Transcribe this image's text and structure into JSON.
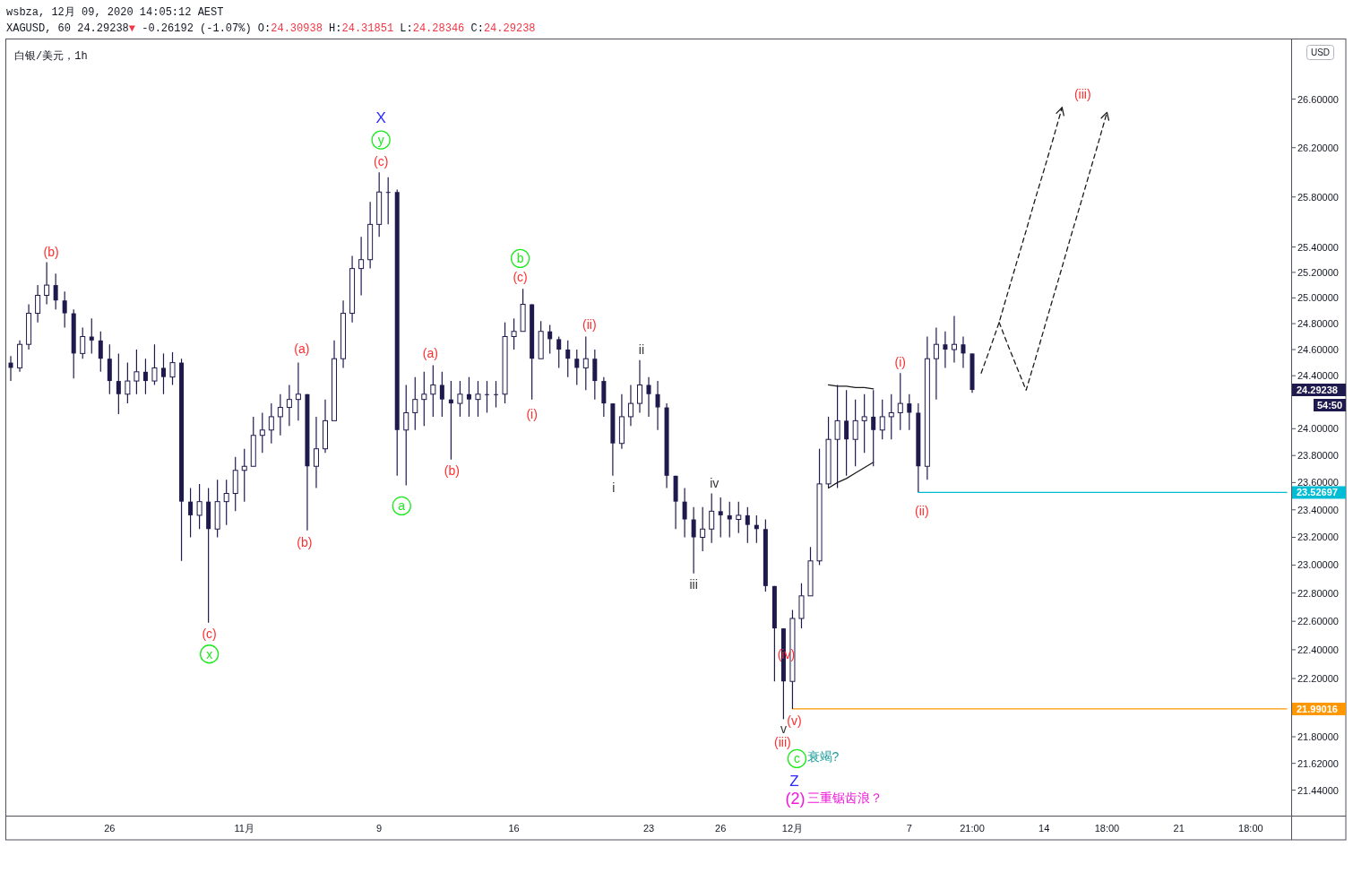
{
  "chart_data": {
    "type": "candlestick",
    "title": "白银/美元，1h",
    "log": true,
    "color": "#1f1a4d",
    "ylim": [
      21.27,
      27.1
    ],
    "yticks": [
      {
        "value": 26.6,
        "label": "26.60000"
      },
      {
        "value": 26.2,
        "label": "26.20000"
      },
      {
        "value": 25.8,
        "label": "25.80000"
      },
      {
        "value": 25.4,
        "label": "25.40000"
      },
      {
        "value": 25.2,
        "label": "25.20000"
      },
      {
        "value": 25.0,
        "label": "25.00000"
      },
      {
        "value": 24.8,
        "label": "24.80000"
      },
      {
        "value": 24.6,
        "label": "24.60000"
      },
      {
        "value": 24.4,
        "label": "24.40000"
      },
      {
        "value": 24.0,
        "label": "24.00000"
      },
      {
        "value": 23.8,
        "label": "23.80000"
      },
      {
        "value": 23.6,
        "label": "23.60000"
      },
      {
        "value": 23.4,
        "label": "23.40000"
      },
      {
        "value": 23.2,
        "label": "23.20000"
      },
      {
        "value": 23.0,
        "label": "23.00000"
      },
      {
        "value": 22.8,
        "label": "22.80000"
      },
      {
        "value": 22.6,
        "label": "22.60000"
      },
      {
        "value": 22.4,
        "label": "22.40000"
      },
      {
        "value": 22.2,
        "label": "22.20000"
      },
      {
        "value": 21.8,
        "label": "21.80000"
      },
      {
        "value": 21.62,
        "label": "21.62000"
      },
      {
        "value": 21.44,
        "label": "21.44000"
      }
    ],
    "categories": [
      null,
      null,
      null,
      null,
      null,
      null,
      null,
      null,
      null,
      null,
      null,
      "26",
      null,
      null,
      null,
      null,
      null,
      null,
      null,
      null,
      null,
      null,
      null,
      null,
      null,
      null,
      "11月",
      null,
      null,
      null,
      null,
      null,
      null,
      null,
      null,
      null,
      null,
      null,
      null,
      null,
      null,
      "9",
      null,
      null,
      null,
      null,
      null,
      null,
      null,
      null,
      null,
      null,
      null,
      null,
      null,
      null,
      "16",
      null,
      null,
      null,
      null,
      null,
      null,
      null,
      null,
      null,
      null,
      null,
      null,
      null,
      null,
      "23",
      null,
      null,
      null,
      null,
      null,
      null,
      null,
      "26",
      null,
      null,
      null,
      null,
      null,
      null,
      null,
      "12月",
      null,
      null,
      null,
      null,
      null,
      null,
      null,
      null,
      null,
      null,
      null,
      null,
      "7",
      null,
      null,
      null,
      null,
      null,
      null,
      "21:00",
      null,
      null,
      null,
      null,
      null,
      null,
      null,
      "14",
      null,
      null,
      null,
      null,
      null,
      null,
      "18:00",
      null,
      null,
      null,
      null,
      null,
      null,
      null,
      "21",
      null,
      null,
      null,
      null,
      null,
      null,
      null,
      "18:00",
      null,
      null,
      null,
      null
    ],
    "ohlc": [
      [
        24.5,
        24.55,
        24.36,
        24.46
      ],
      [
        24.46,
        24.67,
        24.43,
        24.64
      ],
      [
        24.64,
        24.95,
        24.6,
        24.88
      ],
      [
        24.88,
        25.1,
        24.81,
        25.02
      ],
      [
        25.02,
        25.28,
        24.95,
        25.1
      ],
      [
        25.1,
        25.19,
        24.91,
        24.98
      ],
      [
        24.98,
        25.05,
        24.77,
        24.88
      ],
      [
        24.88,
        24.91,
        24.38,
        24.57
      ],
      [
        24.57,
        24.77,
        24.53,
        24.7
      ],
      [
        24.7,
        24.84,
        24.57,
        24.67
      ],
      [
        24.67,
        24.74,
        24.43,
        24.53
      ],
      [
        24.53,
        24.64,
        24.26,
        24.36
      ],
      [
        24.36,
        24.57,
        24.11,
        24.26
      ],
      [
        24.26,
        24.5,
        24.19,
        24.36
      ],
      [
        24.36,
        24.6,
        24.26,
        24.43
      ],
      [
        24.43,
        24.53,
        24.26,
        24.36
      ],
      [
        24.36,
        24.64,
        24.33,
        24.46
      ],
      [
        24.46,
        24.57,
        24.26,
        24.39
      ],
      [
        24.39,
        24.58,
        24.33,
        24.5
      ],
      [
        24.5,
        24.53,
        23.03,
        23.46
      ],
      [
        23.46,
        23.56,
        23.2,
        23.36
      ],
      [
        23.36,
        23.59,
        23.26,
        23.46
      ],
      [
        23.46,
        23.56,
        22.59,
        23.26
      ],
      [
        23.26,
        23.62,
        23.2,
        23.46
      ],
      [
        23.46,
        23.62,
        23.29,
        23.52
      ],
      [
        23.52,
        23.79,
        23.39,
        23.69
      ],
      [
        23.69,
        23.85,
        23.46,
        23.72
      ],
      [
        23.72,
        24.09,
        23.72,
        23.95
      ],
      [
        23.95,
        24.12,
        23.82,
        23.99
      ],
      [
        23.99,
        24.19,
        23.89,
        24.09
      ],
      [
        24.09,
        24.26,
        23.95,
        24.16
      ],
      [
        24.16,
        24.33,
        24.02,
        24.22
      ],
      [
        24.22,
        24.5,
        24.06,
        24.26
      ],
      [
        24.26,
        24.26,
        23.25,
        23.72
      ],
      [
        23.72,
        24.09,
        23.56,
        23.85
      ],
      [
        23.85,
        24.22,
        23.82,
        24.06
      ],
      [
        24.06,
        24.67,
        24.06,
        24.53
      ],
      [
        24.53,
        24.98,
        24.46,
        24.88
      ],
      [
        24.88,
        25.33,
        24.81,
        25.23
      ],
      [
        25.23,
        25.48,
        25.02,
        25.3
      ],
      [
        25.3,
        25.76,
        25.23,
        25.58
      ],
      [
        25.58,
        26.0,
        25.48,
        25.84
      ],
      [
        25.84,
        25.96,
        25.58,
        25.84
      ],
      [
        25.84,
        25.86,
        23.65,
        23.99
      ],
      [
        23.99,
        24.33,
        23.58,
        24.12
      ],
      [
        24.12,
        24.39,
        23.99,
        24.22
      ],
      [
        24.22,
        24.43,
        24.02,
        24.26
      ],
      [
        24.26,
        24.48,
        24.09,
        24.33
      ],
      [
        24.33,
        24.43,
        24.09,
        24.22
      ],
      [
        24.22,
        24.36,
        23.77,
        24.19
      ],
      [
        24.19,
        24.36,
        24.09,
        24.26
      ],
      [
        24.26,
        24.39,
        24.09,
        24.22
      ],
      [
        24.22,
        24.36,
        24.09,
        24.26
      ],
      [
        24.26,
        24.36,
        24.12,
        24.26
      ],
      [
        24.26,
        24.36,
        24.16,
        24.26
      ],
      [
        24.26,
        24.81,
        24.19,
        24.7
      ],
      [
        24.7,
        24.84,
        24.6,
        24.74
      ],
      [
        24.74,
        25.07,
        24.74,
        24.95
      ],
      [
        24.95,
        24.95,
        24.22,
        24.53
      ],
      [
        24.53,
        24.82,
        24.53,
        24.74
      ],
      [
        24.74,
        24.79,
        24.57,
        24.68
      ],
      [
        24.68,
        24.7,
        24.46,
        24.6
      ],
      [
        24.6,
        24.67,
        24.39,
        24.53
      ],
      [
        24.53,
        24.6,
        24.33,
        24.46
      ],
      [
        24.46,
        24.7,
        24.29,
        24.53
      ],
      [
        24.53,
        24.6,
        24.22,
        24.36
      ],
      [
        24.36,
        24.39,
        24.09,
        24.19
      ],
      [
        24.19,
        24.19,
        23.65,
        23.89
      ],
      [
        23.89,
        24.26,
        23.85,
        24.09
      ],
      [
        24.09,
        24.33,
        24.02,
        24.19
      ],
      [
        24.19,
        24.52,
        24.12,
        24.33
      ],
      [
        24.33,
        24.39,
        24.09,
        24.26
      ],
      [
        24.26,
        24.36,
        23.99,
        24.16
      ],
      [
        24.16,
        24.19,
        23.56,
        23.65
      ],
      [
        23.65,
        23.65,
        23.26,
        23.46
      ],
      [
        23.46,
        23.56,
        23.2,
        23.33
      ],
      [
        23.33,
        23.42,
        22.94,
        23.2
      ],
      [
        23.2,
        23.42,
        23.1,
        23.26
      ],
      [
        23.26,
        23.52,
        23.16,
        23.39
      ],
      [
        23.39,
        23.49,
        23.2,
        23.36
      ],
      [
        23.36,
        23.46,
        23.2,
        23.33
      ],
      [
        23.33,
        23.46,
        23.23,
        23.36
      ],
      [
        23.36,
        23.42,
        23.16,
        23.29
      ],
      [
        23.29,
        23.36,
        23.16,
        23.26
      ],
      [
        23.26,
        23.33,
        22.81,
        22.85
      ],
      [
        22.85,
        22.85,
        22.18,
        22.55
      ],
      [
        22.55,
        22.55,
        21.92,
        22.18
      ],
      [
        22.18,
        22.68,
        21.99,
        22.62
      ],
      [
        22.62,
        22.87,
        22.55,
        22.78
      ],
      [
        22.78,
        23.13,
        22.78,
        23.03
      ],
      [
        23.03,
        23.85,
        23.0,
        23.59
      ],
      [
        23.59,
        24.09,
        23.56,
        23.92
      ],
      [
        23.92,
        24.33,
        23.56,
        24.06
      ],
      [
        24.06,
        24.29,
        23.65,
        23.92
      ],
      [
        23.92,
        24.22,
        23.72,
        24.06
      ],
      [
        24.06,
        24.26,
        23.82,
        24.09
      ],
      [
        24.09,
        24.29,
        23.72,
        23.99
      ],
      [
        23.99,
        24.22,
        23.92,
        24.09
      ],
      [
        24.09,
        24.26,
        23.92,
        24.12
      ],
      [
        24.12,
        24.42,
        23.99,
        24.19
      ],
      [
        24.19,
        24.26,
        23.99,
        24.12
      ],
      [
        24.12,
        24.19,
        23.53,
        23.72
      ],
      [
        23.72,
        24.7,
        23.62,
        24.53
      ],
      [
        24.53,
        24.77,
        24.22,
        24.64
      ],
      [
        24.64,
        24.74,
        24.46,
        24.6
      ],
      [
        24.6,
        24.86,
        24.5,
        24.64
      ],
      [
        24.64,
        24.7,
        24.46,
        24.57
      ],
      [
        24.57,
        24.57,
        24.27,
        24.29238
      ],
      null,
      null,
      null,
      null,
      null,
      null,
      null,
      null,
      null,
      null,
      null,
      null,
      null,
      null,
      null,
      null,
      null,
      null,
      null,
      null,
      null,
      null,
      null,
      null,
      null,
      null,
      null,
      null,
      null,
      null,
      null,
      null,
      null,
      null,
      null
    ],
    "value_labels": [
      null,
      null,
      null,
      null,
      null,
      null,
      null,
      null,
      null,
      null,
      null,
      null,
      null,
      null,
      null,
      null,
      null,
      null,
      null,
      null,
      null,
      null,
      null,
      null,
      null,
      null,
      null,
      null,
      null,
      null,
      null,
      null,
      null,
      null,
      null,
      null,
      null,
      null,
      null,
      null,
      null,
      null,
      null,
      null,
      null,
      null,
      null,
      null,
      null,
      null,
      null,
      null,
      null,
      null,
      null,
      null,
      null,
      null,
      null,
      null,
      null,
      null,
      null,
      null,
      null,
      null,
      null,
      null,
      null,
      null,
      null,
      null,
      null,
      null,
      null,
      null,
      null,
      null,
      null,
      null,
      null,
      null,
      null,
      null,
      null,
      null,
      null,
      null,
      null,
      null,
      null,
      null,
      null,
      null,
      null,
      null,
      null,
      null,
      null,
      null,
      null,
      null,
      null,
      null,
      null,
      null,
      null,
      "24.29238",
      null,
      null,
      null,
      null,
      null,
      null,
      null,
      null,
      null,
      null,
      null,
      null,
      null,
      null,
      null,
      null,
      null,
      null,
      null,
      null,
      null,
      null,
      null,
      null,
      null,
      null,
      null,
      null,
      null,
      null,
      null,
      null,
      null,
      null,
      null
    ],
    "series": [
      {
        "type": "line",
        "color": "#1b1b1b",
        "values": [
          null,
          null,
          null,
          null,
          null,
          null,
          null,
          null,
          null,
          null,
          null,
          null,
          null,
          null,
          null,
          null,
          null,
          null,
          null,
          null,
          null,
          null,
          null,
          null,
          null,
          null,
          null,
          null,
          null,
          null,
          null,
          null,
          null,
          null,
          null,
          null,
          null,
          null,
          null,
          null,
          null,
          null,
          null,
          null,
          null,
          null,
          null,
          null,
          null,
          null,
          null,
          null,
          null,
          null,
          null,
          null,
          null,
          null,
          null,
          null,
          null,
          null,
          null,
          null,
          null,
          null,
          null,
          null,
          null,
          null,
          null,
          null,
          null,
          null,
          null,
          null,
          null,
          null,
          null,
          null,
          null,
          null,
          null,
          null,
          null,
          null,
          null,
          null,
          null,
          null,
          null,
          24.33,
          24.32,
          24.32,
          24.31,
          24.31,
          24.3,
          null,
          null,
          null,
          null,
          null,
          null,
          null,
          null,
          null,
          null,
          null,
          null,
          null,
          null,
          null,
          null,
          null,
          null,
          null,
          null,
          null,
          null,
          null,
          null,
          null,
          null,
          null,
          null,
          null,
          null,
          null,
          null,
          null,
          null,
          null,
          null,
          null,
          null,
          null,
          null,
          null,
          null,
          null,
          null,
          null,
          null
        ]
      },
      {
        "type": "line",
        "color": "#1b1b1b",
        "values": [
          null,
          null,
          null,
          null,
          null,
          null,
          null,
          null,
          null,
          null,
          null,
          null,
          null,
          null,
          null,
          null,
          null,
          null,
          null,
          null,
          null,
          null,
          null,
          null,
          null,
          null,
          null,
          null,
          null,
          null,
          null,
          null,
          null,
          null,
          null,
          null,
          null,
          null,
          null,
          null,
          null,
          null,
          null,
          null,
          null,
          null,
          null,
          null,
          null,
          null,
          null,
          null,
          null,
          null,
          null,
          null,
          null,
          null,
          null,
          null,
          null,
          null,
          null,
          null,
          null,
          null,
          null,
          null,
          null,
          null,
          null,
          null,
          null,
          null,
          null,
          null,
          null,
          null,
          null,
          null,
          null,
          null,
          null,
          null,
          null,
          null,
          null,
          null,
          null,
          null,
          null,
          23.56,
          23.6,
          23.63,
          23.67,
          23.71,
          23.75,
          null,
          null,
          null,
          null,
          null,
          null,
          null,
          null,
          null,
          null,
          null,
          null,
          null,
          null,
          null,
          null,
          null,
          null,
          null,
          null,
          null,
          null,
          null,
          null,
          null,
          null,
          null,
          null,
          null,
          null,
          null,
          null,
          null,
          null,
          null,
          null,
          null,
          null,
          null,
          null,
          null,
          null,
          null,
          null,
          null,
          null
        ]
      },
      {
        "type": "line",
        "color": "#00bcd4",
        "values": [
          null,
          null,
          null,
          null,
          null,
          null,
          null,
          null,
          null,
          null,
          null,
          null,
          null,
          null,
          null,
          null,
          null,
          null,
          null,
          null,
          null,
          null,
          null,
          null,
          null,
          null,
          null,
          null,
          null,
          null,
          null,
          null,
          null,
          null,
          null,
          null,
          null,
          null,
          null,
          null,
          null,
          null,
          null,
          null,
          null,
          null,
          null,
          null,
          null,
          null,
          null,
          null,
          null,
          null,
          null,
          null,
          null,
          null,
          null,
          null,
          null,
          null,
          null,
          null,
          null,
          null,
          null,
          null,
          null,
          null,
          null,
          null,
          null,
          null,
          null,
          null,
          null,
          null,
          null,
          null,
          null,
          null,
          null,
          null,
          null,
          null,
          null,
          null,
          null,
          null,
          null,
          null,
          null,
          null,
          null,
          null,
          null,
          null,
          null,
          null,
          null,
          23.52697,
          23.52697,
          23.52697,
          23.52697,
          23.52697,
          23.52697,
          23.52697,
          23.52697,
          23.52697,
          23.52697,
          23.52697,
          23.52697,
          23.52697,
          23.52697,
          23.52697,
          23.52697,
          23.52697,
          23.52697,
          23.52697,
          23.52697,
          23.52697,
          23.52697,
          23.52697,
          23.52697,
          23.52697,
          23.52697,
          23.52697,
          23.52697,
          23.52697,
          23.52697,
          23.52697,
          23.52697,
          23.52697,
          23.52697,
          23.52697,
          23.52697,
          23.52697,
          23.52697,
          23.52697,
          23.52697,
          23.52697,
          23.52697
        ],
        "value_labels": [
          null,
          null,
          null,
          null,
          null,
          null,
          null,
          null,
          null,
          null,
          null,
          null,
          null,
          null,
          null,
          null,
          null,
          null,
          null,
          null,
          null,
          null,
          null,
          null,
          null,
          null,
          null,
          null,
          null,
          null,
          null,
          null,
          null,
          null,
          null,
          null,
          null,
          null,
          null,
          null,
          null,
          null,
          null,
          null,
          null,
          null,
          null,
          null,
          null,
          null,
          null,
          null,
          null,
          null,
          null,
          null,
          null,
          null,
          null,
          null,
          null,
          null,
          null,
          null,
          null,
          null,
          null,
          null,
          null,
          null,
          null,
          null,
          null,
          null,
          null,
          null,
          null,
          null,
          null,
          null,
          null,
          null,
          null,
          null,
          null,
          null,
          null,
          null,
          null,
          null,
          null,
          null,
          null,
          null,
          null,
          null,
          null,
          null,
          null,
          null,
          null,
          null,
          null,
          null,
          null,
          null,
          null,
          null,
          null,
          null,
          null,
          null,
          null,
          null,
          null,
          null,
          null,
          null,
          null,
          null,
          null,
          null,
          null,
          null,
          null,
          null,
          null,
          null,
          null,
          null,
          null,
          null,
          null,
          null,
          null,
          null,
          null,
          null,
          null,
          null,
          null,
          null,
          "23.52697"
        ]
      },
      {
        "type": "line",
        "color": "#ff9800",
        "values": [
          null,
          null,
          null,
          null,
          null,
          null,
          null,
          null,
          null,
          null,
          null,
          null,
          null,
          null,
          null,
          null,
          null,
          null,
          null,
          null,
          null,
          null,
          null,
          null,
          null,
          null,
          null,
          null,
          null,
          null,
          null,
          null,
          null,
          null,
          null,
          null,
          null,
          null,
          null,
          null,
          null,
          null,
          null,
          null,
          null,
          null,
          null,
          null,
          null,
          null,
          null,
          null,
          null,
          null,
          null,
          null,
          null,
          null,
          null,
          null,
          null,
          null,
          null,
          null,
          null,
          null,
          null,
          null,
          null,
          null,
          null,
          null,
          null,
          null,
          null,
          null,
          null,
          null,
          null,
          null,
          null,
          null,
          null,
          null,
          null,
          null,
          null,
          21.99016,
          21.99016,
          21.99016,
          21.99016,
          21.99016,
          21.99016,
          21.99016,
          21.99016,
          21.99016,
          21.99016,
          21.99016,
          21.99016,
          21.99016,
          21.99016,
          21.99016,
          21.99016,
          21.99016,
          21.99016,
          21.99016,
          21.99016,
          21.99016,
          21.99016,
          21.99016,
          21.99016,
          21.99016,
          21.99016,
          21.99016,
          21.99016,
          21.99016,
          21.99016,
          21.99016,
          21.99016,
          21.99016,
          21.99016,
          21.99016,
          21.99016,
          21.99016,
          21.99016,
          21.99016,
          21.99016,
          21.99016,
          21.99016,
          21.99016,
          21.99016,
          21.99016,
          21.99016,
          21.99016,
          21.99016,
          21.99016,
          21.99016,
          21.99016,
          21.99016,
          21.99016,
          21.99016,
          21.99016,
          21.99016
        ],
        "value_labels": [
          null,
          null,
          null,
          null,
          null,
          null,
          null,
          null,
          null,
          null,
          null,
          null,
          null,
          null,
          null,
          null,
          null,
          null,
          null,
          null,
          null,
          null,
          null,
          null,
          null,
          null,
          null,
          null,
          null,
          null,
          null,
          null,
          null,
          null,
          null,
          null,
          null,
          null,
          null,
          null,
          null,
          null,
          null,
          null,
          null,
          null,
          null,
          null,
          null,
          null,
          null,
          null,
          null,
          null,
          null,
          null,
          null,
          null,
          null,
          null,
          null,
          null,
          null,
          null,
          null,
          null,
          null,
          null,
          null,
          null,
          null,
          null,
          null,
          null,
          null,
          null,
          null,
          null,
          null,
          null,
          null,
          null,
          null,
          null,
          null,
          null,
          null,
          null,
          null,
          null,
          null,
          null,
          null,
          null,
          null,
          null,
          null,
          null,
          null,
          null,
          null,
          null,
          null,
          null,
          null,
          null,
          null,
          null,
          null,
          null,
          null,
          null,
          null,
          null,
          null,
          null,
          null,
          null,
          null,
          null,
          null,
          null,
          null,
          null,
          null,
          null,
          null,
          null,
          null,
          null,
          null,
          null,
          null,
          null,
          null,
          null,
          null,
          null,
          null,
          null,
          null,
          null,
          "21.99016"
        ]
      },
      {
        "type": "line",
        "color": "#1b1b1b",
        "line_style": "dashed",
        "values": [
          null,
          null,
          null,
          null,
          null,
          null,
          null,
          null,
          null,
          null,
          null,
          null,
          null,
          null,
          null,
          null,
          null,
          null,
          null,
          null,
          null,
          null,
          null,
          null,
          null,
          null,
          null,
          null,
          null,
          null,
          null,
          null,
          null,
          null,
          null,
          null,
          null,
          null,
          null,
          null,
          null,
          null,
          null,
          null,
          null,
          null,
          null,
          null,
          null,
          null,
          null,
          null,
          null,
          null,
          null,
          null,
          null,
          null,
          null,
          null,
          null,
          null,
          null,
          null,
          null,
          null,
          null,
          null,
          null,
          null,
          null,
          null,
          null,
          null,
          null,
          null,
          null,
          null,
          null,
          null,
          null,
          null,
          null,
          null,
          null,
          null,
          null,
          null,
          null,
          null,
          null,
          null,
          null,
          null,
          null,
          null,
          null,
          null,
          null,
          null,
          null,
          null,
          null,
          null,
          null,
          null,
          null,
          null,
          24.42,
          24.61,
          24.81,
          25.05,
          25.29,
          25.53,
          25.78,
          26.02,
          26.27,
          26.53,
          null,
          null,
          null,
          null,
          null,
          null,
          null,
          null,
          null,
          null,
          null,
          null,
          null,
          null,
          null,
          null,
          null,
          null,
          null,
          null,
          null,
          null,
          null,
          null,
          null
        ]
      },
      {
        "type": "line",
        "color": "#1b1b1b",
        "line_style": "dashed",
        "values": [
          null,
          null,
          null,
          null,
          null,
          null,
          null,
          null,
          null,
          null,
          null,
          null,
          null,
          null,
          null,
          null,
          null,
          null,
          null,
          null,
          null,
          null,
          null,
          null,
          null,
          null,
          null,
          null,
          null,
          null,
          null,
          null,
          null,
          null,
          null,
          null,
          null,
          null,
          null,
          null,
          null,
          null,
          null,
          null,
          null,
          null,
          null,
          null,
          null,
          null,
          null,
          null,
          null,
          null,
          null,
          null,
          null,
          null,
          null,
          null,
          null,
          null,
          null,
          null,
          null,
          null,
          null,
          null,
          null,
          null,
          null,
          null,
          null,
          null,
          null,
          null,
          null,
          null,
          null,
          null,
          null,
          null,
          null,
          null,
          null,
          null,
          null,
          null,
          null,
          null,
          null,
          null,
          null,
          null,
          null,
          null,
          null,
          null,
          null,
          null,
          null,
          null,
          null,
          null,
          null,
          null,
          null,
          null,
          null,
          null,
          24.81,
          24.63,
          24.46,
          24.29,
          24.52,
          24.76,
          25.0,
          25.24,
          25.49,
          25.73,
          25.98,
          26.23,
          26.49,
          null,
          null,
          null,
          null,
          null,
          null,
          null,
          null,
          null,
          null,
          null,
          null,
          null,
          null,
          null,
          null,
          null,
          null,
          null,
          null
        ]
      }
    ],
    "annotations": [
      "wsbza, 12月 09, 2020 14:05:12 AEST",
      "XAGUSD, 60 24.29238",
      "▼",
      " -0.26192 (-1.07%) O:",
      "24.30938",
      " H:",
      "24.31851",
      " L:",
      "24.28346",
      " C:",
      "24.29238",
      "USD",
      "54:50",
      "(b)",
      "(c)",
      "x",
      "(a)",
      "(b)",
      "X",
      "y",
      "(c)",
      "a",
      "(a)",
      "(b)",
      "b",
      "(c)",
      "(i)",
      "(ii)",
      "i",
      "ii",
      "iii",
      "iv",
      "(iv)",
      "v",
      "(iii)",
      "c",
      "衰竭?",
      "Z",
      "(2)",
      "三重锯齿浪？",
      "(v)",
      "(i)",
      "(ii)",
      "(iii)"
    ]
  }
}
